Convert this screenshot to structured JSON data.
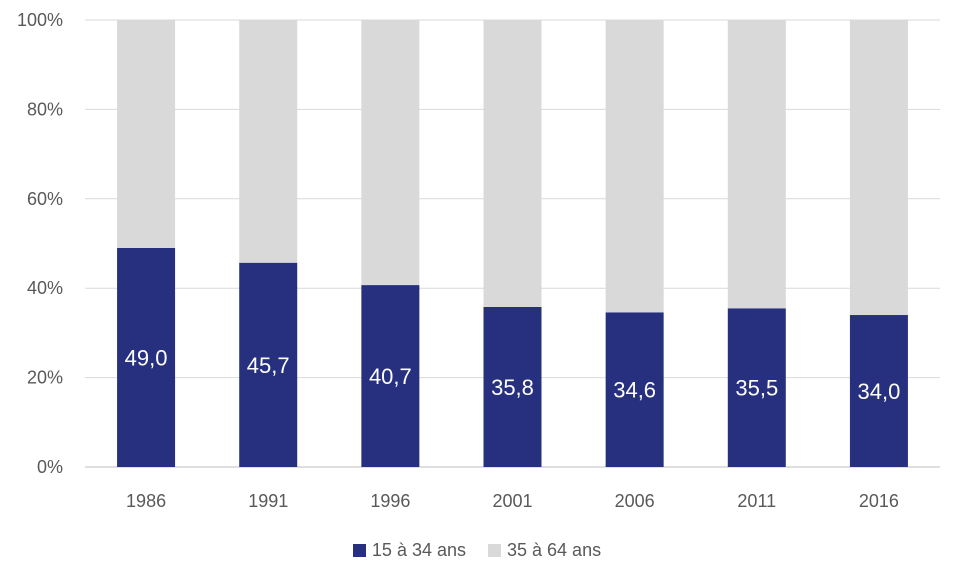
{
  "chart_data": {
    "type": "bar",
    "stacked": true,
    "normalized": true,
    "categories": [
      "1986",
      "1991",
      "1996",
      "2001",
      "2006",
      "2011",
      "2016"
    ],
    "series": [
      {
        "name": "15 à 34 ans",
        "values": [
          49.0,
          45.7,
          40.7,
          35.8,
          34.6,
          35.5,
          34.0
        ],
        "color": "#27307f"
      },
      {
        "name": "35 à 64 ans",
        "values": [
          51.0,
          54.3,
          59.3,
          64.2,
          65.4,
          64.5,
          66.0
        ],
        "color": "#d9d9d9"
      }
    ],
    "data_labels": [
      "49,0",
      "45,7",
      "40,7",
      "35,8",
      "34,6",
      "35,5",
      "34,0"
    ],
    "y_ticks": [
      "0%",
      "20%",
      "40%",
      "60%",
      "80%",
      "100%"
    ],
    "ylim": [
      0,
      100
    ],
    "grid": true,
    "legend_position": "bottom"
  }
}
